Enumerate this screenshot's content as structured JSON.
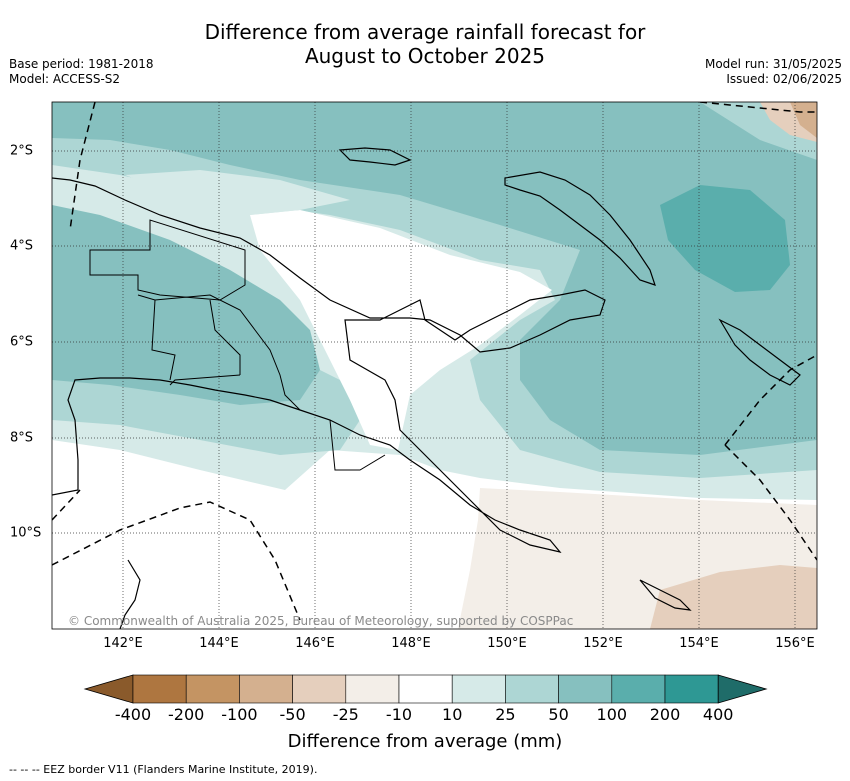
{
  "title": {
    "line1": "Difference from average rainfall forecast for",
    "line2": "August to October 2025"
  },
  "meta_left": {
    "base_period": "Base period: 1981-2018",
    "model": "Model: ACCESS-S2"
  },
  "meta_right": {
    "model_run": "Model run: 31/05/2025",
    "issued": "Issued: 02/06/2025"
  },
  "map": {
    "x_ticks": [
      "142°E",
      "144°E",
      "146°E",
      "148°E",
      "150°E",
      "152°E",
      "154°E",
      "156°E"
    ],
    "y_ticks": [
      "2°S",
      "4°S",
      "6°S",
      "8°S",
      "10°S"
    ],
    "copyright": "© Commonwealth of Australia 2025, Bureau of Meteorology, supported by COSPPac"
  },
  "colorbar": {
    "labels": [
      "-400",
      "-200",
      "-100",
      "-50",
      "-25",
      "-10",
      "10",
      "25",
      "50",
      "100",
      "200",
      "400"
    ],
    "colors": [
      "#8a5a2b",
      "#ae7640",
      "#c49463",
      "#d4b08f",
      "#e5cfbd",
      "#f3eee8",
      "#ffffff",
      "#d6eae8",
      "#add6d4",
      "#86c0bf",
      "#5aaeac",
      "#2e9894",
      "#1f6c69"
    ],
    "title": "Difference from average (mm)"
  },
  "legend_text": "-- -- -- EEZ border V11 (Flanders Marine Institute, 2019)."
}
